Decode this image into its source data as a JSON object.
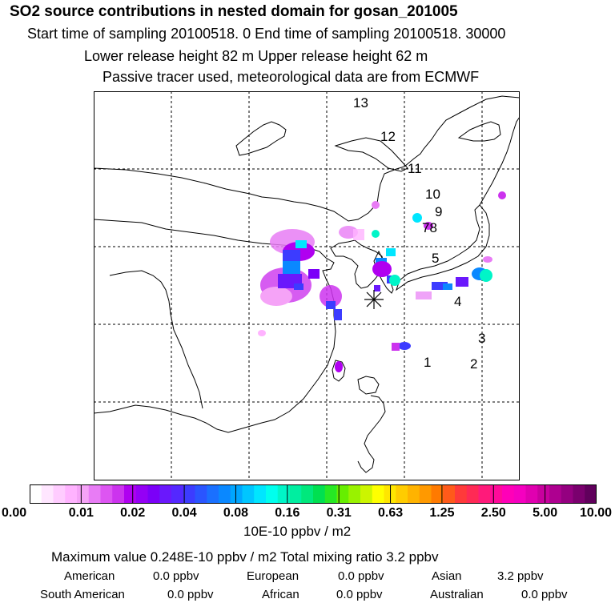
{
  "header": {
    "title": "SO2 source contributions in nested domain for gosan_201005",
    "line1": "Start time of sampling 20100518.     0     End time of sampling 20100518. 30000",
    "line2": "Lower release height   82 m          Upper release height   62 m",
    "line3": "Passive tracer used, meteorological data are from ECMWF"
  },
  "map": {
    "receptor_marker": "asterisk-marker",
    "track_labels": [
      "13",
      "12",
      "11",
      "10",
      "9",
      "78",
      "5",
      "4",
      "3",
      "2",
      "1"
    ],
    "colors": {
      "coast": "#000000",
      "grid": "#000000"
    }
  },
  "colorbar": {
    "ticks": [
      "0.00",
      "0.01",
      "0.02",
      "0.04",
      "0.08",
      "0.16",
      "0.31",
      "0.63",
      "1.25",
      "2.50",
      "5.00",
      "10.00"
    ],
    "colors": [
      "#ffffff",
      "#ffe6ff",
      "#ffccff",
      "#ffb3ff",
      "#f5a3f7",
      "#e87cf5",
      "#dd55f2",
      "#cc33ee",
      "#b000f0",
      "#9400f5",
      "#7b00f8",
      "#6a18fc",
      "#5428ff",
      "#3c3cff",
      "#2a55ff",
      "#1a70ff",
      "#0a88ff",
      "#00a6ff",
      "#00c6ff",
      "#00e6ff",
      "#00ffee",
      "#00f5c8",
      "#00eea0",
      "#00e87c",
      "#00e050",
      "#26e824",
      "#66ee00",
      "#99f200",
      "#ccf500",
      "#ffff00",
      "#ffe600",
      "#ffcc00",
      "#ffb300",
      "#ff9900",
      "#ff7a00",
      "#ff5a1a",
      "#ff3a3a",
      "#ff2a55",
      "#ff1a7a",
      "#ff0a9a",
      "#ff00b8",
      "#f500c0",
      "#e000b0",
      "#c8009e",
      "#ae0090",
      "#940080",
      "#7a006e",
      "#60005c"
    ],
    "unit": "10E-10 ppbv / m2"
  },
  "summary": {
    "max_line": "Maximum value  0.248E-10 ppbv / m2      Total mixing ratio       3.2 ppbv",
    "american": "American",
    "american_val": "0.0 ppbv",
    "european": "European",
    "european_val": "0.0 ppbv",
    "asian": "Asian",
    "asian_val": "3.2 ppbv",
    "south_american": "South American",
    "south_american_val": "0.0 ppbv",
    "african": "African",
    "african_val": "0.0 ppbv",
    "australian": "Australian",
    "australian_val": "0.0 ppbv"
  }
}
